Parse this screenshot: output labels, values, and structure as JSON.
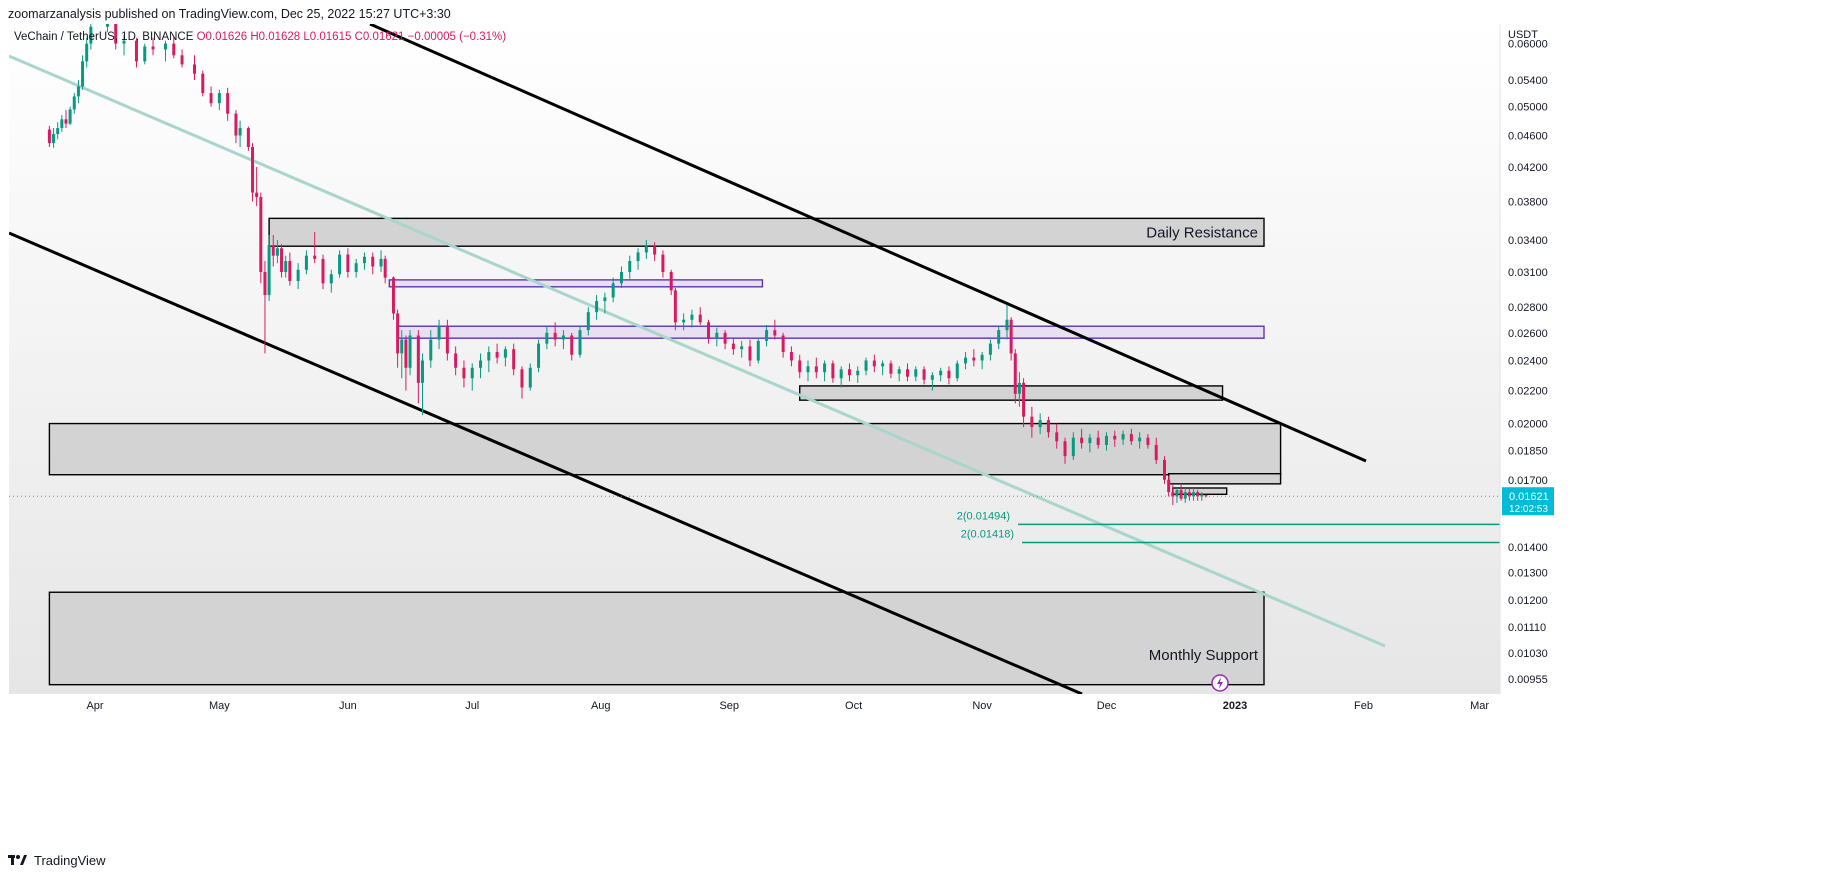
{
  "header": {
    "published": "zoomarzanalysis published on TradingView.com, Dec 25, 2022 15:27 UTC+3:30"
  },
  "footer": {
    "brand": "TradingView"
  },
  "symbol": {
    "name": "VeChain / TetherUS, 1D, BINANCE",
    "o": "O0.01626",
    "h": "H0.01628",
    "l": "L0.01615",
    "c": "C0.01621",
    "chg": "−0.00005 (−0.31%)"
  },
  "colors": {
    "up": "#26a69a",
    "down": "#ef5350",
    "up_dark": "#089981",
    "down_dark": "#d81b60",
    "accent": "#00bcd4",
    "purple": "#6a1b9a"
  },
  "chart_data": {
    "type": "candlestick",
    "currency": "USDT",
    "y_scale": "log",
    "y_ticks": [
      "0.06000",
      "0.05400",
      "0.05000",
      "0.04600",
      "0.04200",
      "0.03800",
      "0.03400",
      "0.03100",
      "0.02800",
      "0.02600",
      "0.02400",
      "0.02200",
      "0.02000",
      "0.01850",
      "0.01700",
      "0.01400",
      "0.01300",
      "0.01200",
      "0.01110",
      "0.01030",
      "0.00955"
    ],
    "x_ticks": [
      "Apr",
      "May",
      "Jun",
      "Jul",
      "Aug",
      "Sep",
      "Oct",
      "Nov",
      "Dec",
      "2023",
      "Feb",
      "Mar"
    ],
    "last_price": {
      "value": "0.01621",
      "countdown": "12:02:53"
    },
    "zones": [
      {
        "label": "Daily Resistance",
        "top": 0.0362,
        "bottom": 0.0334,
        "from": "2022-05-13",
        "to": "2023-01-08"
      },
      {
        "label": "",
        "top": 0.02,
        "bottom": 0.01725,
        "from": "2022-03-21",
        "to": "2023-01-12"
      },
      {
        "label": "Monthly Support",
        "top": 0.01228,
        "bottom": 0.0094,
        "from": "2022-03-21",
        "to": "2023-01-08"
      }
    ],
    "fib_targets": [
      {
        "label": "2(0.01494)",
        "value": 0.01494
      },
      {
        "label": "2(0.01418)",
        "value": 0.01418
      }
    ],
    "candles": [
      [
        "2022-03-21",
        0.0468,
        0.0473,
        0.0445,
        0.045
      ],
      [
        "2022-03-22",
        0.045,
        0.047,
        0.0444,
        0.0462
      ],
      [
        "2022-03-23",
        0.0462,
        0.0478,
        0.0455,
        0.047
      ],
      [
        "2022-03-24",
        0.047,
        0.0488,
        0.0465,
        0.0482
      ],
      [
        "2022-03-25",
        0.0482,
        0.0495,
        0.047,
        0.0476
      ],
      [
        "2022-03-26",
        0.0476,
        0.05,
        0.0474,
        0.0496
      ],
      [
        "2022-03-27",
        0.0496,
        0.052,
        0.049,
        0.0515
      ],
      [
        "2022-03-28",
        0.0515,
        0.054,
        0.0505,
        0.053
      ],
      [
        "2022-03-29",
        0.053,
        0.058,
        0.0525,
        0.057
      ],
      [
        "2022-03-30",
        0.057,
        0.061,
        0.056,
        0.06
      ],
      [
        "2022-03-31",
        0.06,
        0.064,
        0.059,
        0.063
      ],
      [
        "2022-04-04",
        0.063,
        0.066,
        0.062,
        0.065
      ],
      [
        "2022-04-06",
        0.064,
        0.065,
        0.059,
        0.06
      ],
      [
        "2022-04-08",
        0.06,
        0.0615,
        0.058,
        0.0605
      ],
      [
        "2022-04-11",
        0.0605,
        0.061,
        0.056,
        0.057
      ],
      [
        "2022-04-13",
        0.057,
        0.06,
        0.0565,
        0.0595
      ],
      [
        "2022-04-15",
        0.0595,
        0.061,
        0.058,
        0.059
      ],
      [
        "2022-04-18",
        0.059,
        0.0605,
        0.057,
        0.06
      ],
      [
        "2022-04-20",
        0.06,
        0.0612,
        0.0575,
        0.058
      ],
      [
        "2022-04-22",
        0.058,
        0.059,
        0.056,
        0.0565
      ],
      [
        "2022-04-25",
        0.0565,
        0.058,
        0.054,
        0.055
      ],
      [
        "2022-04-27",
        0.055,
        0.0555,
        0.0515,
        0.052
      ],
      [
        "2022-04-29",
        0.052,
        0.053,
        0.05,
        0.0505
      ],
      [
        "2022-05-01",
        0.0505,
        0.0525,
        0.0495,
        0.052
      ],
      [
        "2022-05-03",
        0.052,
        0.0528,
        0.048,
        0.049
      ],
      [
        "2022-05-05",
        0.049,
        0.0495,
        0.045,
        0.046
      ],
      [
        "2022-05-06",
        0.046,
        0.048,
        0.0445,
        0.047
      ],
      [
        "2022-05-08",
        0.047,
        0.0472,
        0.044,
        0.0445
      ],
      [
        "2022-05-09",
        0.0445,
        0.045,
        0.038,
        0.039
      ],
      [
        "2022-05-10",
        0.039,
        0.042,
        0.0375,
        0.0385
      ],
      [
        "2022-05-11",
        0.0385,
        0.039,
        0.03,
        0.031
      ],
      [
        "2022-05-12",
        0.031,
        0.032,
        0.0245,
        0.029
      ],
      [
        "2022-05-13",
        0.029,
        0.0345,
        0.0285,
        0.0335
      ],
      [
        "2022-05-14",
        0.0335,
        0.0345,
        0.0315,
        0.0325
      ],
      [
        "2022-05-15",
        0.0325,
        0.034,
        0.0318,
        0.0332
      ],
      [
        "2022-05-16",
        0.0332,
        0.0336,
        0.0305,
        0.031
      ],
      [
        "2022-05-17",
        0.031,
        0.0325,
        0.0305,
        0.032
      ],
      [
        "2022-05-18",
        0.032,
        0.0328,
        0.0298,
        0.0302
      ],
      [
        "2022-05-20",
        0.0302,
        0.0318,
        0.0295,
        0.0312
      ],
      [
        "2022-05-22",
        0.0312,
        0.033,
        0.0308,
        0.0325
      ],
      [
        "2022-05-24",
        0.0325,
        0.0348,
        0.0318,
        0.0322
      ],
      [
        "2022-05-26",
        0.0322,
        0.0326,
        0.0295,
        0.03
      ],
      [
        "2022-05-28",
        0.03,
        0.0312,
        0.0292,
        0.0308
      ],
      [
        "2022-05-30",
        0.0308,
        0.033,
        0.0305,
        0.0326
      ],
      [
        "2022-06-01",
        0.0326,
        0.0332,
        0.0305,
        0.031
      ],
      [
        "2022-06-03",
        0.031,
        0.0322,
        0.0305,
        0.0318
      ],
      [
        "2022-06-05",
        0.0318,
        0.0328,
        0.0312,
        0.0324
      ],
      [
        "2022-06-07",
        0.0324,
        0.0328,
        0.0308,
        0.0315
      ],
      [
        "2022-06-09",
        0.0315,
        0.033,
        0.031,
        0.0322
      ],
      [
        "2022-06-10",
        0.0322,
        0.0325,
        0.03,
        0.0305
      ],
      [
        "2022-06-12",
        0.0305,
        0.0306,
        0.027,
        0.0275
      ],
      [
        "2022-06-13",
        0.0275,
        0.0278,
        0.0235,
        0.0245
      ],
      [
        "2022-06-14",
        0.0245,
        0.0262,
        0.0228,
        0.0255
      ],
      [
        "2022-06-15",
        0.0255,
        0.0258,
        0.022,
        0.0235
      ],
      [
        "2022-06-16",
        0.0235,
        0.0262,
        0.023,
        0.0258
      ],
      [
        "2022-06-18",
        0.0258,
        0.0262,
        0.0212,
        0.0225
      ],
      [
        "2022-06-19",
        0.0225,
        0.0245,
        0.0205,
        0.024
      ],
      [
        "2022-06-21",
        0.024,
        0.0262,
        0.0235,
        0.0255
      ],
      [
        "2022-06-23",
        0.0255,
        0.027,
        0.0248,
        0.0265
      ],
      [
        "2022-06-25",
        0.0265,
        0.027,
        0.024,
        0.0245
      ],
      [
        "2022-06-27",
        0.0245,
        0.025,
        0.023,
        0.0235
      ],
      [
        "2022-06-29",
        0.0235,
        0.024,
        0.0222,
        0.0228
      ],
      [
        "2022-07-01",
        0.0228,
        0.0238,
        0.022,
        0.0235
      ],
      [
        "2022-07-03",
        0.0235,
        0.0245,
        0.0228,
        0.024
      ],
      [
        "2022-07-05",
        0.024,
        0.025,
        0.0232,
        0.0246
      ],
      [
        "2022-07-07",
        0.0246,
        0.0252,
        0.0238,
        0.0242
      ],
      [
        "2022-07-09",
        0.0242,
        0.025,
        0.0236,
        0.0248
      ],
      [
        "2022-07-11",
        0.0248,
        0.0252,
        0.023,
        0.0234
      ],
      [
        "2022-07-13",
        0.0234,
        0.0236,
        0.0215,
        0.0222
      ],
      [
        "2022-07-15",
        0.0222,
        0.0238,
        0.022,
        0.0235
      ],
      [
        "2022-07-17",
        0.0235,
        0.0255,
        0.0232,
        0.0252
      ],
      [
        "2022-07-19",
        0.0252,
        0.0265,
        0.0248,
        0.026
      ],
      [
        "2022-07-21",
        0.026,
        0.0268,
        0.025,
        0.0255
      ],
      [
        "2022-07-23",
        0.0255,
        0.0262,
        0.0248,
        0.0258
      ],
      [
        "2022-07-25",
        0.0258,
        0.026,
        0.024,
        0.0244
      ],
      [
        "2022-07-27",
        0.0244,
        0.0265,
        0.0242,
        0.0262
      ],
      [
        "2022-07-29",
        0.0262,
        0.028,
        0.0258,
        0.0276
      ],
      [
        "2022-07-31",
        0.0276,
        0.029,
        0.027,
        0.0285
      ],
      [
        "2022-08-02",
        0.0285,
        0.0292,
        0.0275,
        0.0288
      ],
      [
        "2022-08-04",
        0.0288,
        0.0305,
        0.0284,
        0.03
      ],
      [
        "2022-08-06",
        0.03,
        0.0315,
        0.0296,
        0.031
      ],
      [
        "2022-08-08",
        0.031,
        0.0325,
        0.0304,
        0.032
      ],
      [
        "2022-08-10",
        0.032,
        0.0332,
        0.0312,
        0.0328
      ],
      [
        "2022-08-12",
        0.0328,
        0.034,
        0.0322,
        0.0334
      ],
      [
        "2022-08-14",
        0.0334,
        0.0338,
        0.032,
        0.0326
      ],
      [
        "2022-08-16",
        0.0326,
        0.033,
        0.0305,
        0.031
      ],
      [
        "2022-08-18",
        0.031,
        0.0312,
        0.029,
        0.0294
      ],
      [
        "2022-08-19",
        0.0294,
        0.0296,
        0.0262,
        0.0268
      ],
      [
        "2022-08-21",
        0.0268,
        0.0275,
        0.0262,
        0.027
      ],
      [
        "2022-08-23",
        0.027,
        0.0278,
        0.0264,
        0.0274
      ],
      [
        "2022-08-25",
        0.0274,
        0.028,
        0.0266,
        0.0268
      ],
      [
        "2022-08-27",
        0.0268,
        0.027,
        0.0252,
        0.0256
      ],
      [
        "2022-08-29",
        0.0256,
        0.0264,
        0.025,
        0.026
      ],
      [
        "2022-08-31",
        0.026,
        0.0262,
        0.0248,
        0.0252
      ],
      [
        "2022-09-02",
        0.0252,
        0.0256,
        0.0244,
        0.0248
      ],
      [
        "2022-09-04",
        0.0248,
        0.0254,
        0.0242,
        0.025
      ],
      [
        "2022-09-06",
        0.025,
        0.0255,
        0.0236,
        0.024
      ],
      [
        "2022-09-08",
        0.024,
        0.0256,
        0.0238,
        0.0254
      ],
      [
        "2022-09-10",
        0.0254,
        0.0266,
        0.025,
        0.0262
      ],
      [
        "2022-09-12",
        0.0262,
        0.027,
        0.0255,
        0.0258
      ],
      [
        "2022-09-14",
        0.0258,
        0.026,
        0.0242,
        0.0246
      ],
      [
        "2022-09-16",
        0.0246,
        0.025,
        0.0236,
        0.024
      ],
      [
        "2022-09-18",
        0.024,
        0.0244,
        0.0228,
        0.0232
      ],
      [
        "2022-09-20",
        0.0232,
        0.024,
        0.0226,
        0.0236
      ],
      [
        "2022-09-22",
        0.0236,
        0.0242,
        0.0228,
        0.0232
      ],
      [
        "2022-09-24",
        0.0232,
        0.024,
        0.0226,
        0.0238
      ],
      [
        "2022-09-26",
        0.0238,
        0.024,
        0.0225,
        0.0228
      ],
      [
        "2022-09-28",
        0.0228,
        0.0236,
        0.0222,
        0.0234
      ],
      [
        "2022-09-30",
        0.0234,
        0.0238,
        0.0226,
        0.023
      ],
      [
        "2022-10-02",
        0.023,
        0.0236,
        0.0225,
        0.0233
      ],
      [
        "2022-10-04",
        0.0233,
        0.0242,
        0.023,
        0.024
      ],
      [
        "2022-10-06",
        0.024,
        0.0244,
        0.0232,
        0.0236
      ],
      [
        "2022-10-08",
        0.0236,
        0.024,
        0.023,
        0.0238
      ],
      [
        "2022-10-10",
        0.0238,
        0.024,
        0.0228,
        0.0231
      ],
      [
        "2022-10-12",
        0.0231,
        0.0236,
        0.0226,
        0.0234
      ],
      [
        "2022-10-14",
        0.0234,
        0.0238,
        0.0226,
        0.0229
      ],
      [
        "2022-10-16",
        0.0229,
        0.0236,
        0.0226,
        0.0234
      ],
      [
        "2022-10-18",
        0.0234,
        0.0236,
        0.0224,
        0.0227
      ],
      [
        "2022-10-20",
        0.0227,
        0.0232,
        0.022,
        0.023
      ],
      [
        "2022-10-22",
        0.023,
        0.0235,
        0.0226,
        0.0233
      ],
      [
        "2022-10-24",
        0.0233,
        0.0236,
        0.0224,
        0.0228
      ],
      [
        "2022-10-26",
        0.0228,
        0.024,
        0.0226,
        0.0238
      ],
      [
        "2022-10-28",
        0.0238,
        0.0246,
        0.0234,
        0.0242
      ],
      [
        "2022-10-30",
        0.0242,
        0.0248,
        0.0236,
        0.024
      ],
      [
        "2022-11-01",
        0.024,
        0.0246,
        0.0234,
        0.0244
      ],
      [
        "2022-11-03",
        0.0244,
        0.0255,
        0.024,
        0.0252
      ],
      [
        "2022-11-05",
        0.0252,
        0.0265,
        0.0248,
        0.0262
      ],
      [
        "2022-11-07",
        0.0262,
        0.0282,
        0.0255,
        0.027
      ],
      [
        "2022-11-08",
        0.027,
        0.0272,
        0.024,
        0.0245
      ],
      [
        "2022-11-09",
        0.0245,
        0.0248,
        0.0212,
        0.0218
      ],
      [
        "2022-11-10",
        0.0218,
        0.0232,
        0.021,
        0.0225
      ],
      [
        "2022-11-11",
        0.0225,
        0.0228,
        0.0198,
        0.0204
      ],
      [
        "2022-11-13",
        0.0204,
        0.021,
        0.0192,
        0.0198
      ],
      [
        "2022-11-15",
        0.0198,
        0.0206,
        0.0194,
        0.0202
      ],
      [
        "2022-11-17",
        0.0202,
        0.0204,
        0.0192,
        0.0195
      ],
      [
        "2022-11-19",
        0.0195,
        0.02,
        0.0186,
        0.019
      ],
      [
        "2022-11-21",
        0.019,
        0.0192,
        0.0178,
        0.0182
      ],
      [
        "2022-11-23",
        0.0182,
        0.0195,
        0.018,
        0.0192
      ],
      [
        "2022-11-25",
        0.0192,
        0.0197,
        0.0186,
        0.0189
      ],
      [
        "2022-11-27",
        0.0189,
        0.0194,
        0.0184,
        0.0192
      ],
      [
        "2022-11-29",
        0.0192,
        0.0196,
        0.0186,
        0.0188
      ],
      [
        "2022-12-01",
        0.0188,
        0.0195,
        0.0185,
        0.0193
      ],
      [
        "2022-12-03",
        0.0193,
        0.0196,
        0.0187,
        0.0191
      ],
      [
        "2022-12-05",
        0.0191,
        0.0196,
        0.0188,
        0.0194
      ],
      [
        "2022-12-07",
        0.0194,
        0.0197,
        0.0188,
        0.019
      ],
      [
        "2022-12-09",
        0.019,
        0.0195,
        0.0186,
        0.0192
      ],
      [
        "2022-12-11",
        0.0192,
        0.0194,
        0.0186,
        0.0188
      ],
      [
        "2022-12-13",
        0.0188,
        0.0192,
        0.0178,
        0.018
      ],
      [
        "2022-12-15",
        0.018,
        0.0182,
        0.0168,
        0.017
      ],
      [
        "2022-12-16",
        0.017,
        0.0172,
        0.0162,
        0.0164
      ],
      [
        "2022-12-17",
        0.0164,
        0.0168,
        0.0158,
        0.0162
      ],
      [
        "2022-12-18",
        0.0162,
        0.0166,
        0.0159,
        0.0165
      ],
      [
        "2022-12-19",
        0.0165,
        0.0168,
        0.016,
        0.0161
      ],
      [
        "2022-12-20",
        0.0161,
        0.0166,
        0.0159,
        0.0164
      ],
      [
        "2022-12-21",
        0.0164,
        0.0166,
        0.016,
        0.0162
      ],
      [
        "2022-12-22",
        0.0162,
        0.0166,
        0.016,
        0.0164
      ],
      [
        "2022-12-23",
        0.0164,
        0.0165,
        0.016,
        0.0162
      ],
      [
        "2022-12-24",
        0.0162,
        0.0164,
        0.016,
        0.0163
      ],
      [
        "2022-12-25",
        0.01626,
        0.01628,
        0.01615,
        0.01621
      ]
    ]
  }
}
